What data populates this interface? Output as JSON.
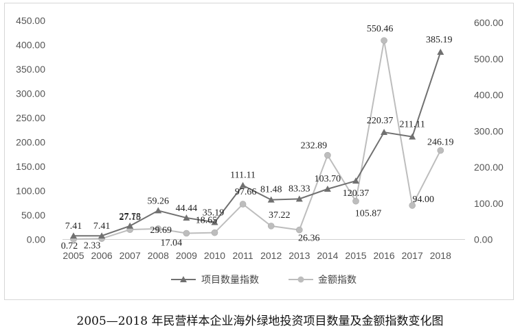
{
  "caption": "2005—2018 年民营样本企业海外绿地投资项目数量及金额指数变化图",
  "chart_data": {
    "type": "line",
    "categories": [
      "2005",
      "2006",
      "2007",
      "2008",
      "2009",
      "2010",
      "2011",
      "2012",
      "2013",
      "2014",
      "2015",
      "2016",
      "2017",
      "2018"
    ],
    "series": [
      {
        "name": "项目数量指数",
        "axis": "left",
        "marker": "triangle",
        "color": "#707070",
        "values": [
          7.41,
          7.41,
          27.78,
          59.26,
          44.44,
          35.19,
          111.11,
          81.48,
          83.33,
          103.7,
          120.37,
          220.37,
          211.11,
          385.19
        ],
        "labels": [
          "7.41",
          "7.41",
          "27.78",
          "59.26",
          "44.44",
          "35.19",
          "111.11",
          "81.48",
          "83.33",
          "103.70",
          "120.37",
          "220.37",
          "211.11",
          "385.19"
        ]
      },
      {
        "name": "金额指数",
        "axis": "right",
        "marker": "circle",
        "color": "#bdbdbd",
        "values": [
          0.72,
          2.33,
          27.15,
          29.69,
          17.04,
          18.65,
          97.66,
          37.22,
          26.36,
          232.89,
          105.87,
          550.46,
          94.0,
          246.19
        ],
        "labels": [
          "0.72",
          "2.33",
          "27.15",
          "29.69",
          "17.04",
          "18.65",
          "97.66",
          "37.22",
          "26.36",
          "232.89",
          "105.87",
          "550.46",
          "94.00",
          "246.19"
        ]
      }
    ],
    "y_left": {
      "min": 0,
      "max": 450,
      "step": 50,
      "ticks": [
        "0.00",
        "50.00",
        "100.00",
        "150.00",
        "200.00",
        "250.00",
        "300.00",
        "350.00",
        "400.00",
        "450.00"
      ]
    },
    "y_right": {
      "min": 0,
      "max": 600,
      "step": 100,
      "ticks": [
        "0.00",
        "100.00",
        "200.00",
        "300.00",
        "400.00",
        "500.00",
        "600.00"
      ]
    },
    "grid": false,
    "legend_position": "bottom"
  }
}
